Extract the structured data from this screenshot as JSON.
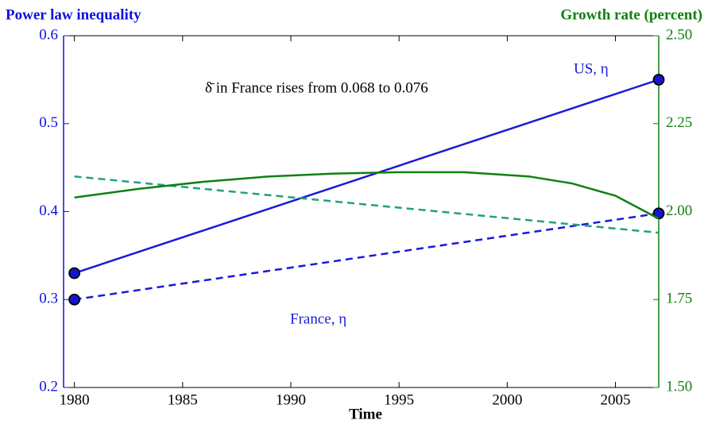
{
  "chart_data": {
    "type": "line",
    "title": "Power law inequality",
    "y2_title": "Growth rate (percent)",
    "xlabel": "Time",
    "annotation": "δ̄ in France rises from 0.068 to 0.076",
    "xlim": [
      1979.5,
      2007
    ],
    "xticks": [
      1980,
      1985,
      1990,
      1995,
      2000,
      2005
    ],
    "ylim": [
      0.2,
      0.6
    ],
    "yticks": [
      0.2,
      0.3,
      0.4,
      0.5,
      0.6
    ],
    "y2lim": [
      1.5,
      2.5
    ],
    "y2ticks": [
      {
        "value": 1.5,
        "label": "1.50"
      },
      {
        "value": 1.75,
        "label": "1.75"
      },
      {
        "value": 2.0,
        "label": "2.00"
      },
      {
        "value": 2.25,
        "label": "2.25"
      },
      {
        "value": 2.5,
        "label": "2.50"
      }
    ],
    "y_color": "#1010e0",
    "y2_color": "#108010",
    "series": [
      {
        "name": "US, η",
        "color": "#1a1ad8",
        "dash": false,
        "markers": true,
        "x": [
          1980,
          2007
        ],
        "values": [
          0.33,
          0.55
        ]
      },
      {
        "name": "France, η",
        "color": "#1a1ad8",
        "dash": true,
        "markers": true,
        "x": [
          1980,
          2007
        ],
        "values": [
          0.3,
          0.398
        ]
      },
      {
        "color": "#20a080",
        "dash": true,
        "markers": false,
        "axis": "y2",
        "x": [
          1980,
          2007
        ],
        "values": [
          2.1,
          1.94
        ]
      },
      {
        "color": "#108010",
        "dash": false,
        "markers": false,
        "axis": "y2",
        "x": [
          1980,
          1983,
          1986,
          1989,
          1992,
          1995,
          1998,
          2001,
          2003,
          2005,
          2007
        ],
        "values": [
          2.04,
          2.065,
          2.085,
          2.1,
          2.108,
          2.112,
          2.112,
          2.1,
          2.08,
          2.045,
          1.98
        ]
      }
    ]
  }
}
